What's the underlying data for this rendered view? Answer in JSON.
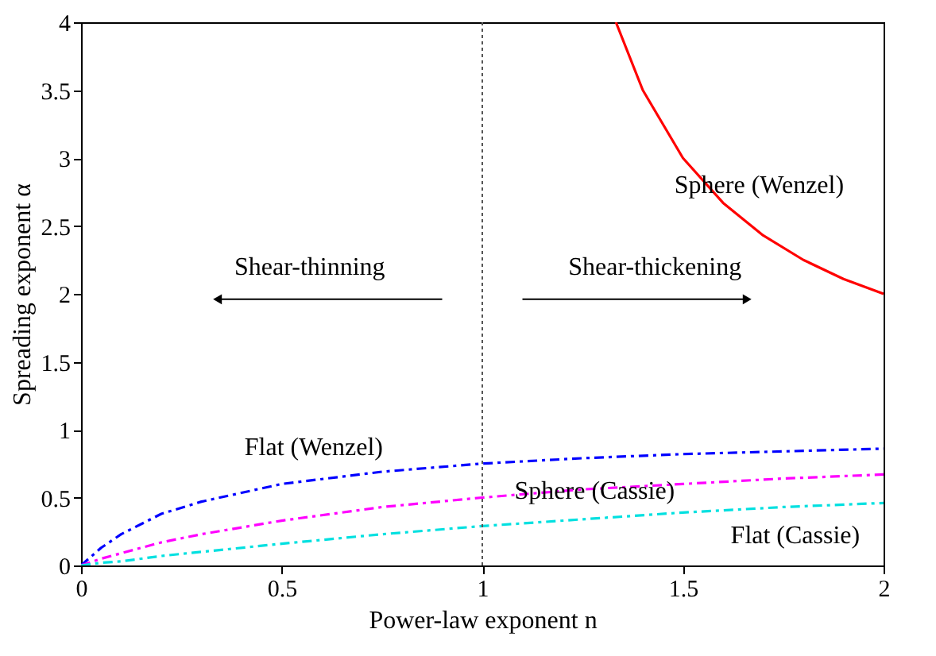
{
  "chart_data": {
    "type": "line",
    "xlabel": "Power-law exponent n",
    "ylabel": "Spreading exponent α",
    "xlim": [
      0,
      2
    ],
    "xticks": [
      0,
      0.5,
      1,
      1.5,
      2
    ],
    "ylim": [
      0,
      4
    ],
    "yticks": [
      0,
      0.5,
      1,
      1.5,
      2,
      2.5,
      3,
      3.5,
      4
    ],
    "grid": false,
    "legend": false,
    "marker": "none",
    "x": [
      0,
      0.05,
      0.1,
      0.2,
      0.3,
      0.5,
      0.75,
      1,
      1.25,
      1.5,
      1.75,
      2
    ],
    "series": [
      {
        "name": "Sphere (Wenzel)",
        "color": "#ff0000",
        "line_style": "solid",
        "x": [
          1.333,
          1.4,
          1.5,
          1.6,
          1.7,
          1.8,
          1.9,
          2
        ],
        "values": [
          4,
          3.5,
          3,
          2.67,
          2.43,
          2.25,
          2.11,
          2
        ]
      },
      {
        "name": "Flat (Wenzel)",
        "color": "#0000ff",
        "line_style": "dashed",
        "values": [
          0,
          0.13,
          0.23,
          0.38,
          0.47,
          0.6,
          0.69,
          0.75,
          0.79,
          0.82,
          0.84,
          0.86
        ]
      },
      {
        "name": "Sphere (Cassie)",
        "color": "#ff00ff",
        "line_style": "dashed",
        "values": [
          0,
          0.05,
          0.09,
          0.17,
          0.23,
          0.33,
          0.43,
          0.5,
          0.56,
          0.6,
          0.64,
          0.67
        ]
      },
      {
        "name": "Flat (Cassie)",
        "color": "#00e0e0",
        "line_style": "dashed",
        "values": [
          0,
          0.02,
          0.03,
          0.07,
          0.1,
          0.16,
          0.23,
          0.29,
          0.34,
          0.39,
          0.43,
          0.46
        ]
      }
    ],
    "ref_lines": [
      {
        "axis": "x",
        "value": 1,
        "color": "#555555",
        "line_style": "dotted"
      }
    ],
    "annotations": [
      "Shear-thinning",
      "Shear-thickening"
    ]
  }
}
